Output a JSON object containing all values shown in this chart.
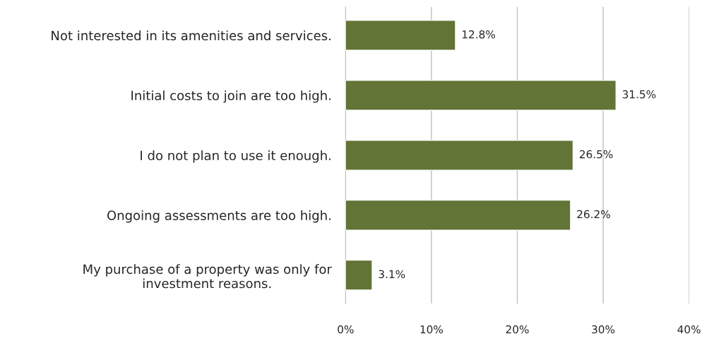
{
  "chart_data": {
    "type": "bar",
    "orientation": "horizontal",
    "categories": [
      "Not interested in its amenities and services.",
      "Initial costs to join are too high.",
      "I do not plan to use it enough.",
      "Ongoing assessments are too high.",
      "My purchase of a property was only for\ninvestment reasons."
    ],
    "values": [
      12.8,
      31.5,
      26.5,
      26.2,
      3.1
    ],
    "value_labels": [
      "12.8%",
      "31.5%",
      "26.5%",
      "26.2%",
      "3.1%"
    ],
    "color": "#627436",
    "xlim": [
      0,
      40
    ],
    "xticks": [
      {
        "value": 0,
        "label": "0%"
      },
      {
        "value": 10,
        "label": "10%"
      },
      {
        "value": 20,
        "label": "20%"
      },
      {
        "value": 30,
        "label": "30%"
      },
      {
        "value": 40,
        "label": "40%"
      }
    ],
    "grid": "x"
  }
}
